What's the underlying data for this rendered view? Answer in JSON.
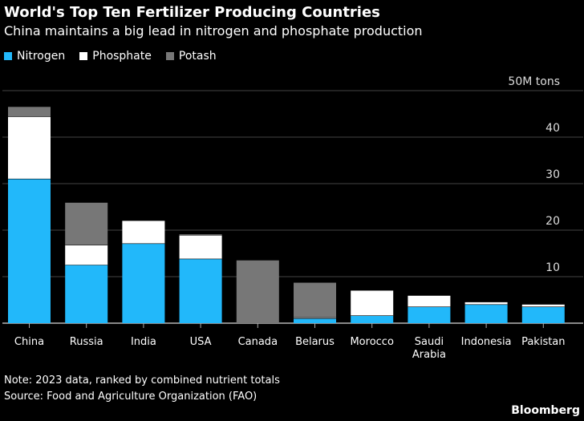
{
  "chart_data": {
    "type": "bar",
    "stacked": true,
    "title": "World's Top Ten Fertilizer Producing Countries",
    "subtitle": "China maintains a big lead in nitrogen and phosphate production",
    "unit_label": "50M tons",
    "categories": [
      "China",
      "Russia",
      "India",
      "USA",
      "Canada",
      "Belarus",
      "Morocco",
      "Saudi Arabia",
      "Indonesia",
      "Pakistan"
    ],
    "series": [
      {
        "name": "Nitrogen",
        "color": "#22b8fa",
        "values": [
          31.0,
          12.5,
          17.1,
          13.8,
          0,
          1.0,
          1.6,
          3.5,
          4.0,
          3.5
        ]
      },
      {
        "name": "Phosphate",
        "color": "#ffffff",
        "values": [
          13.4,
          4.3,
          4.9,
          5.1,
          0,
          0.2,
          5.4,
          2.4,
          0.5,
          0.5
        ]
      },
      {
        "name": "Potash",
        "color": "#777777",
        "values": [
          2.1,
          9.1,
          0,
          0.2,
          13.5,
          7.5,
          0,
          0,
          0,
          0
        ]
      }
    ],
    "yticks": [
      0,
      10,
      20,
      30,
      40,
      50
    ],
    "ylim": [
      0,
      50
    ],
    "grid": true,
    "legend": "top-left"
  },
  "note": "Note: 2023 data, ranked by combined nutrient totals",
  "source": "Source: Food and Agriculture Organization (FAO)",
  "brand": "Bloomberg"
}
